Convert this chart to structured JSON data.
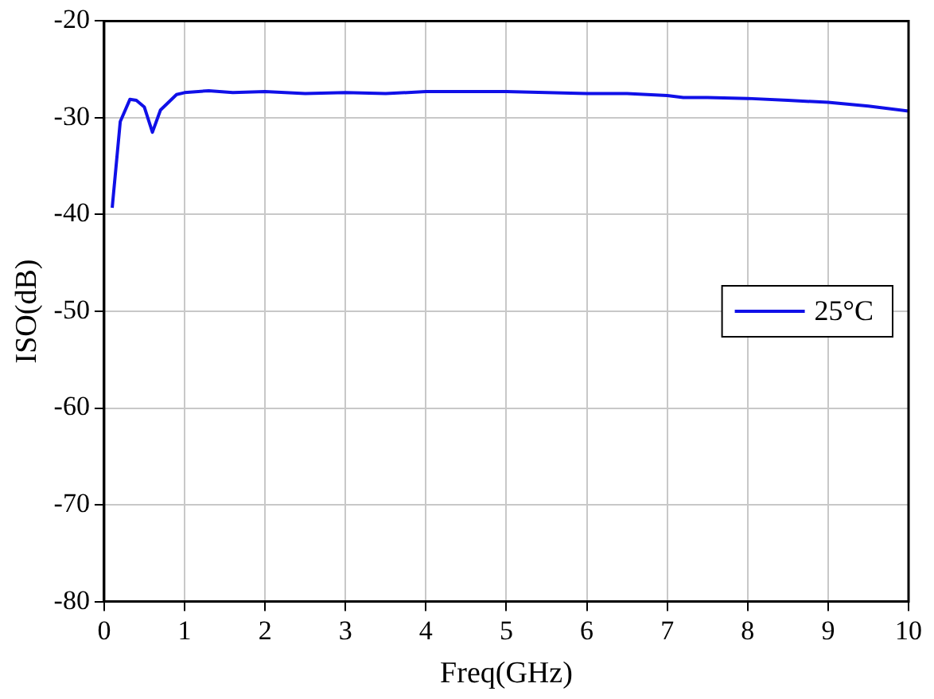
{
  "chart_data": {
    "type": "line",
    "xlabel": "Freq(GHz)",
    "ylabel": "ISO(dB)",
    "xlim": [
      0,
      10
    ],
    "xticks": [
      0,
      1,
      2,
      3,
      4,
      5,
      6,
      7,
      8,
      9,
      10
    ],
    "ylim": [
      -80,
      -20
    ],
    "yticks": [
      -80,
      -70,
      -60,
      -50,
      -40,
      -30,
      -20
    ],
    "grid": true,
    "legend": "right",
    "marker": "none",
    "line_style": "solid",
    "series": [
      {
        "name": "25°C",
        "color": "#1010e8",
        "x": [
          0.1,
          0.2,
          0.32,
          0.4,
          0.5,
          0.6,
          0.7,
          0.9,
          1.0,
          1.3,
          1.6,
          2.0,
          2.5,
          3.0,
          3.5,
          4.0,
          4.5,
          5.0,
          5.5,
          6.0,
          6.5,
          7.0,
          7.2,
          7.5,
          8.0,
          8.5,
          9.0,
          9.5,
          10.0
        ],
        "values": [
          -39.3,
          -30.4,
          -28.1,
          -28.2,
          -28.9,
          -31.5,
          -29.2,
          -27.6,
          -27.4,
          -27.2,
          -27.4,
          -27.3,
          -27.5,
          -27.4,
          -27.5,
          -27.3,
          -27.3,
          -27.3,
          -27.4,
          -27.5,
          -27.5,
          -27.7,
          -27.9,
          -27.9,
          -28.0,
          -28.2,
          -28.4,
          -28.8,
          -29.3
        ]
      }
    ]
  }
}
